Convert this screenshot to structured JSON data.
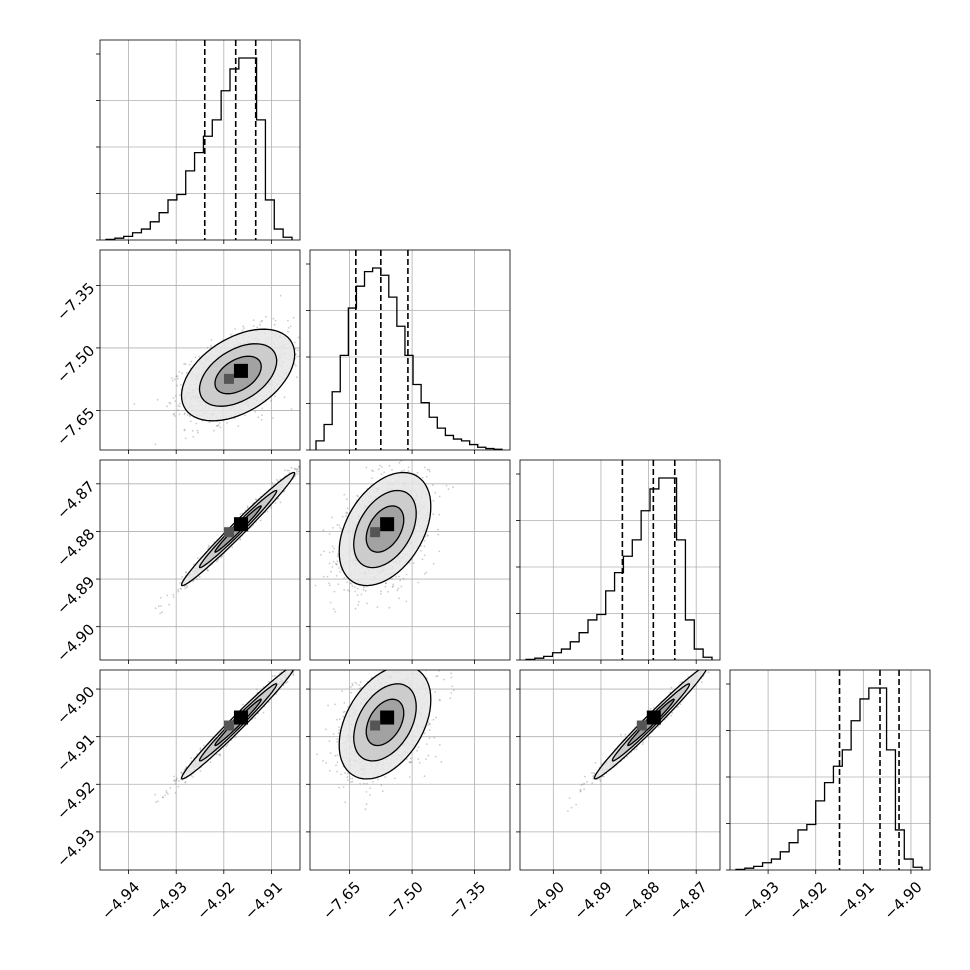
{
  "chart_data": {
    "type": "corner",
    "parameters": [
      {
        "index": 0,
        "range": [
          -4.946,
          -4.904
        ],
        "ticks": [
          -4.94,
          -4.93,
          -4.92,
          -4.91
        ],
        "tick_labels": [
          "−4.94",
          "−4.93",
          "−4.92",
          "−4.91"
        ],
        "quantiles": [
          -4.924,
          -4.9175,
          -4.9133
        ],
        "mean": -4.917,
        "sd": 0.0054,
        "hist": [
          0.003,
          0.01,
          0.02,
          0.04,
          0.06,
          0.1,
          0.15,
          0.22,
          0.25,
          0.38,
          0.48,
          0.57,
          0.66,
          0.82,
          0.94,
          1.0,
          1.0,
          0.66,
          0.22,
          0.06,
          0.015
        ]
      },
      {
        "index": 1,
        "range": [
          -7.745,
          -7.265
        ],
        "ticks": [
          -7.65,
          -7.5,
          -7.35
        ],
        "tick_labels": [
          "−7.65",
          "−7.50",
          "−7.35"
        ],
        "quantiles": [
          -7.635,
          -7.575,
          -7.51
        ],
        "mean": -7.565,
        "sd": 0.05,
        "hist": [
          0.05,
          0.14,
          0.32,
          0.52,
          0.78,
          0.9,
          0.98,
          1.0,
          0.96,
          0.84,
          0.68,
          0.52,
          0.36,
          0.26,
          0.18,
          0.12,
          0.08,
          0.06,
          0.05,
          0.03,
          0.015,
          0.008,
          0.004
        ]
      },
      {
        "index": 2,
        "range": [
          -4.907,
          -4.865
        ],
        "ticks": [
          -4.9,
          -4.89,
          -4.88,
          -4.87
        ],
        "tick_labels": [
          "−4.90",
          "−4.89",
          "−4.88",
          "−4.87"
        ],
        "quantiles": [
          -4.8855,
          -4.879,
          -4.8745
        ],
        "mean": -4.8795,
        "sd": 0.0054,
        "hist": [
          0.003,
          0.01,
          0.02,
          0.04,
          0.06,
          0.1,
          0.15,
          0.22,
          0.25,
          0.38,
          0.48,
          0.57,
          0.66,
          0.82,
          0.94,
          1.0,
          1.0,
          0.66,
          0.22,
          0.06,
          0.015
        ]
      },
      {
        "index": 3,
        "range": [
          -4.938,
          -4.896
        ],
        "ticks": [
          -4.93,
          -4.92,
          -4.91,
          -4.9
        ],
        "tick_labels": [
          "−4.93",
          "−4.92",
          "−4.91",
          "−4.90"
        ],
        "quantiles": [
          -4.915,
          -4.9065,
          -4.9025
        ],
        "mean": -4.907,
        "sd": 0.0054,
        "hist": [
          0.003,
          0.01,
          0.02,
          0.04,
          0.06,
          0.1,
          0.15,
          0.22,
          0.25,
          0.38,
          0.48,
          0.57,
          0.66,
          0.82,
          0.94,
          1.0,
          1.0,
          0.66,
          0.22,
          0.06,
          0.015
        ]
      }
    ],
    "pairs": [
      {
        "x": 0,
        "y": 1,
        "correlation": 0.45
      },
      {
        "x": 0,
        "y": 2,
        "correlation": 0.985
      },
      {
        "x": 1,
        "y": 2,
        "correlation": 0.4
      },
      {
        "x": 0,
        "y": 3,
        "correlation": 0.985
      },
      {
        "x": 1,
        "y": 3,
        "correlation": 0.4
      },
      {
        "x": 2,
        "y": 3,
        "correlation": 0.985
      }
    ],
    "grid": true,
    "colors": {
      "line": "#000000",
      "grid": "#b0b0b0",
      "points": "#808080",
      "density_dark": "#000000",
      "density_light": "#e8e8e8"
    }
  }
}
